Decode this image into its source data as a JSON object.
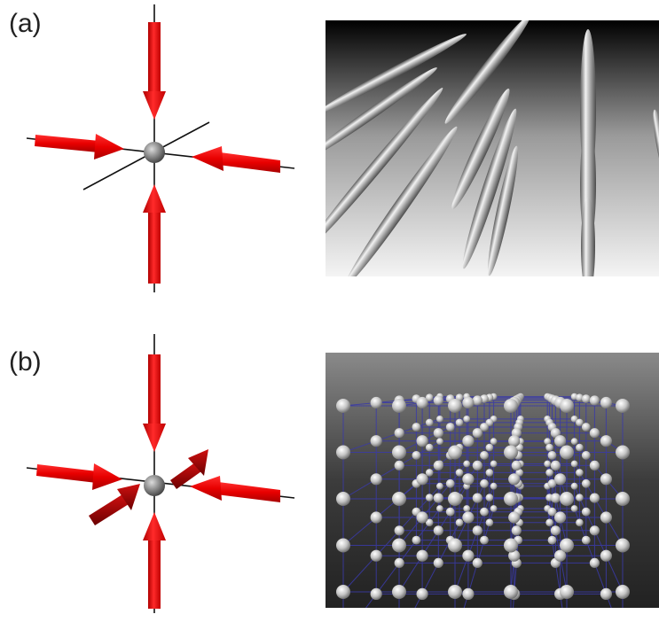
{
  "panels": [
    {
      "label": "(a)"
    },
    {
      "label": "(b)"
    }
  ],
  "colors": {
    "arrow_red": "#e60000",
    "arrow_dark_red": "#a00000",
    "axis_black": "#111111",
    "sphere_gray": "#8a8a8a",
    "grid_blue": "#3a3aa8"
  }
}
